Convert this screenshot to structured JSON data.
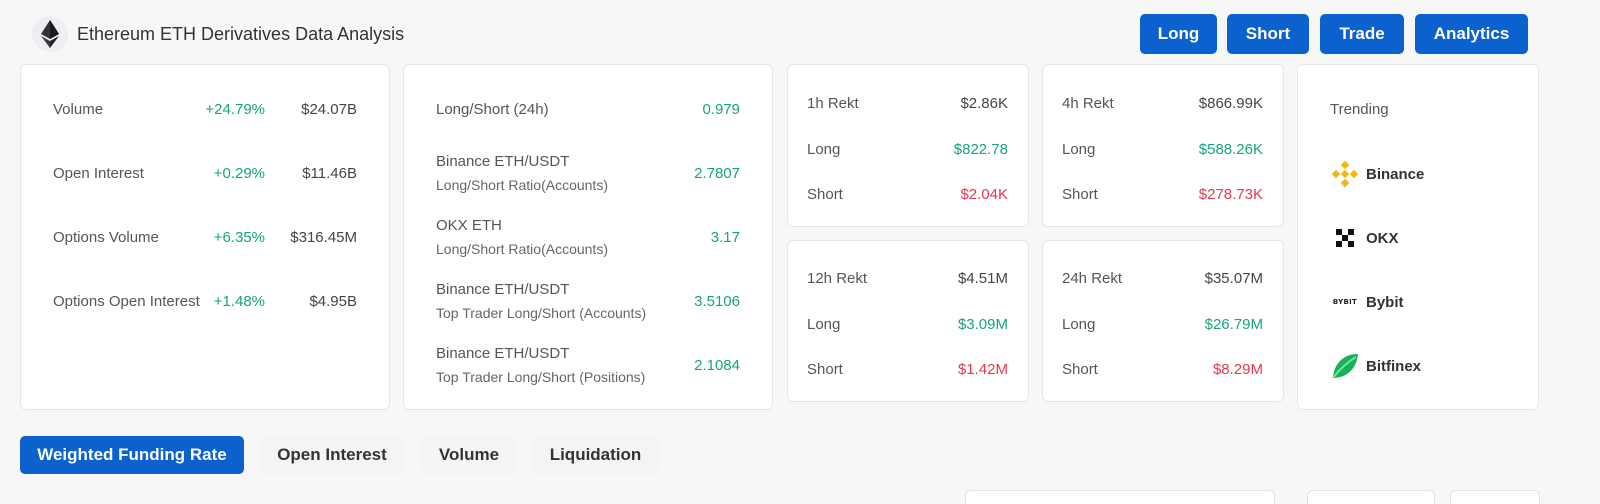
{
  "header": {
    "title": "Ethereum ETH Derivatives Data Analysis",
    "buttons": [
      "Long",
      "Short",
      "Trade",
      "Analytics"
    ]
  },
  "market": {
    "rows": [
      {
        "label": "Volume",
        "change": "+24.79%",
        "value": "$24.07B"
      },
      {
        "label": "Open Interest",
        "change": "+0.29%",
        "value": "$11.46B"
      },
      {
        "label": "Options Volume",
        "change": "+6.35%",
        "value": "$316.45M"
      },
      {
        "label": "Options Open Interest",
        "change": "+1.48%",
        "value": "$4.95B"
      }
    ]
  },
  "ratios": {
    "rows": [
      {
        "label": "Long/Short (24h)",
        "sub": "",
        "value": "0.979"
      },
      {
        "label": "Binance ETH/USDT",
        "sub": "Long/Short Ratio(Accounts)",
        "value": "2.7807"
      },
      {
        "label": "OKX ETH",
        "sub": "Long/Short Ratio(Accounts)",
        "value": "3.17"
      },
      {
        "label": "Binance ETH/USDT",
        "sub": "Top Trader Long/Short (Accounts)",
        "value": "3.5106"
      },
      {
        "label": "Binance ETH/USDT",
        "sub": "Top Trader Long/Short (Positions)",
        "value": "2.1084"
      }
    ]
  },
  "rekt": {
    "h1": {
      "title": "1h Rekt",
      "total": "$2.86K",
      "long_label": "Long",
      "long": "$822.78",
      "short_label": "Short",
      "short": "$2.04K"
    },
    "h4": {
      "title": "4h Rekt",
      "total": "$866.99K",
      "long_label": "Long",
      "long": "$588.26K",
      "short_label": "Short",
      "short": "$278.73K"
    },
    "h12": {
      "title": "12h Rekt",
      "total": "$4.51M",
      "long_label": "Long",
      "long": "$3.09M",
      "short_label": "Short",
      "short": "$1.42M"
    },
    "h24": {
      "title": "24h Rekt",
      "total": "$35.07M",
      "long_label": "Long",
      "long": "$26.79M",
      "short_label": "Short",
      "short": "$8.29M"
    }
  },
  "trending": {
    "title": "Trending",
    "items": [
      {
        "name": "Binance",
        "icon": "binance-icon"
      },
      {
        "name": "OKX",
        "icon": "okx-icon"
      },
      {
        "name": "Bybit",
        "icon": "bybit-icon",
        "logo_text": "BYBIT"
      },
      {
        "name": "Bitfinex",
        "icon": "bitfinex-icon"
      }
    ]
  },
  "tabs": [
    "Weighted Funding Rate",
    "Open Interest",
    "Volume",
    "Liquidation"
  ],
  "colors": {
    "accent": "#0b62cf",
    "positive": "#16a37f",
    "negative": "#e5384f"
  }
}
